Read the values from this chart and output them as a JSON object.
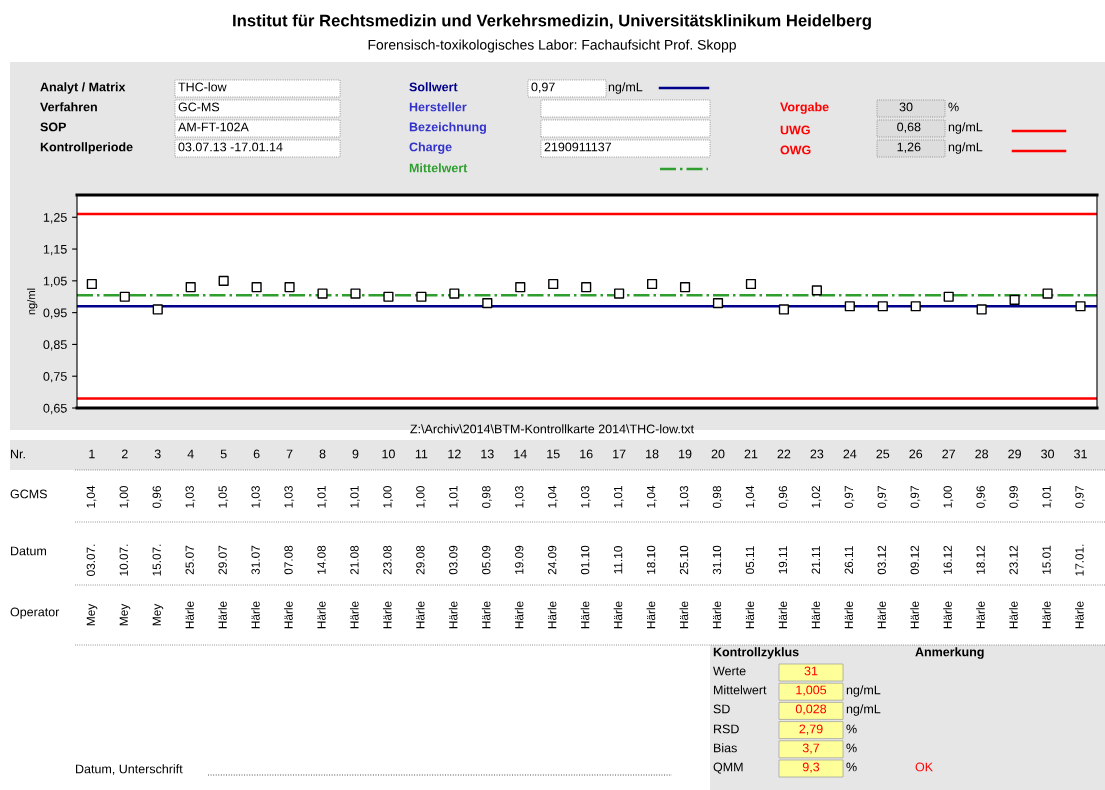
{
  "chart_data": {
    "type": "scatter",
    "title": "Institut für Rechtsmedizin und Verkehrsmedizin, Universitätsklinikum Heidelberg",
    "subtitle": "Forensisch-toxikologisches Labor: Fachaufsicht Prof. Skopp",
    "xlabel": "Nr.",
    "ylabel": "ng/ml",
    "categories": [
      "1",
      "2",
      "3",
      "4",
      "5",
      "6",
      "7",
      "8",
      "9",
      "10",
      "11",
      "12",
      "13",
      "14",
      "15",
      "16",
      "17",
      "18",
      "19",
      "20",
      "21",
      "22",
      "23",
      "24",
      "25",
      "26",
      "27",
      "28",
      "29",
      "30",
      "31"
    ],
    "series": [
      {
        "name": "GCMS",
        "color": "#000000",
        "values": [
          1.04,
          1.0,
          0.96,
          1.03,
          1.05,
          1.03,
          1.03,
          1.01,
          1.01,
          1.0,
          1.0,
          1.01,
          0.98,
          1.03,
          1.04,
          1.03,
          1.01,
          1.04,
          1.03,
          0.98,
          1.04,
          0.96,
          1.02,
          0.97,
          0.97,
          0.97,
          1.0,
          0.96,
          0.99,
          1.01,
          0.97
        ],
        "value_labels": [
          "1,04",
          "1,00",
          "0,96",
          "1,03",
          "1,05",
          "1,03",
          "1,03",
          "1,01",
          "1,01",
          "1,00",
          "1,00",
          "1,01",
          "0,98",
          "1,03",
          "1,04",
          "1,03",
          "1,01",
          "1,04",
          "1,03",
          "0,98",
          "1,04",
          "0,96",
          "1,02",
          "0,97",
          "0,97",
          "0,97",
          "1,00",
          "0,96",
          "0,99",
          "1,01",
          "0,97"
        ]
      }
    ],
    "marker": "square",
    "ylim": [
      0.65,
      1.32
    ],
    "yticks": [
      {
        "value": 0.65,
        "label": "0,65"
      },
      {
        "value": 0.75,
        "label": "0,75"
      },
      {
        "value": 0.85,
        "label": "0,85"
      },
      {
        "value": 0.95,
        "label": "0,95"
      },
      {
        "value": 1.05,
        "label": "1,05"
      },
      {
        "value": 1.15,
        "label": "1,15"
      },
      {
        "value": 1.25,
        "label": "1,25"
      }
    ],
    "grid": false,
    "legend": false,
    "ref_lines": [
      {
        "axis": "y",
        "value": 0.97,
        "label": "Sollwert",
        "color": "#00008b",
        "line_style": "solid"
      },
      {
        "axis": "y",
        "value": 1.005,
        "label": "Mittelwert",
        "color": "#2e9e2e",
        "line_style": "dashdot"
      },
      {
        "axis": "y",
        "value": 0.68,
        "label": "UWG",
        "color": "#ff0000",
        "line_style": "solid"
      },
      {
        "axis": "y",
        "value": 1.26,
        "label": "OWG",
        "color": "#ff0000",
        "line_style": "solid"
      }
    ],
    "annotations": [
      "03.07.",
      "10.07.",
      "15.07.",
      "25.07",
      "29.07",
      "31.07",
      "07.08",
      "14.08",
      "21.08",
      "23.08",
      "29.08",
      "03.09",
      "05.09",
      "19.09",
      "24.09",
      "01.10",
      "11.10",
      "18.10",
      "25.10",
      "31.10",
      "05.11",
      "19.11",
      "21.11",
      "26.11",
      "03.12",
      "09.12",
      "16.12",
      "18.12",
      "23.12",
      "15.01",
      "17.01.",
      "Mey",
      "Mey",
      "Mey",
      "Härle",
      "Härle",
      "Härle",
      "Härle",
      "Härle",
      "Härle",
      "Härle",
      "Härle",
      "Härle",
      "Härle",
      "Härle",
      "Härle",
      "Härle",
      "Härle",
      "Härle",
      "Härle",
      "Härle",
      "Härle",
      "Härle",
      "Härle",
      "Härle",
      "Härle",
      "Härle",
      "Härle",
      "Härle",
      "Härle",
      "Härle",
      "Härle",
      "Analyt / Matrix",
      "THC-low",
      "Verfahren",
      "GC-MS",
      "SOP",
      "AM-FT-102A",
      "Kontrollperiode",
      "03.07.13 -17.01.14",
      "0,97",
      "ng/mL",
      "Hersteller",
      "Bezeichnung",
      "Charge",
      "2190911137",
      "Vorgabe",
      "30",
      "%",
      "0,68",
      "ng/mL",
      "1,26",
      "ng/mL",
      "Z:\\Archiv\\2014\\BTM-Kontrollkarte 2014\\THC-low.txt",
      "Datum",
      "Operator",
      "Kontrollzyklus",
      "Werte",
      "31",
      "Mittelwert",
      "1,005",
      "ng/mL",
      "SD",
      "0,028",
      "ng/mL",
      "RSD",
      "2,79",
      "%",
      "Bias",
      "3,7",
      "%",
      "QMM",
      "9,3",
      "%",
      "Anmerkung",
      "OK",
      "Datum, Unterschrift"
    ]
  }
}
